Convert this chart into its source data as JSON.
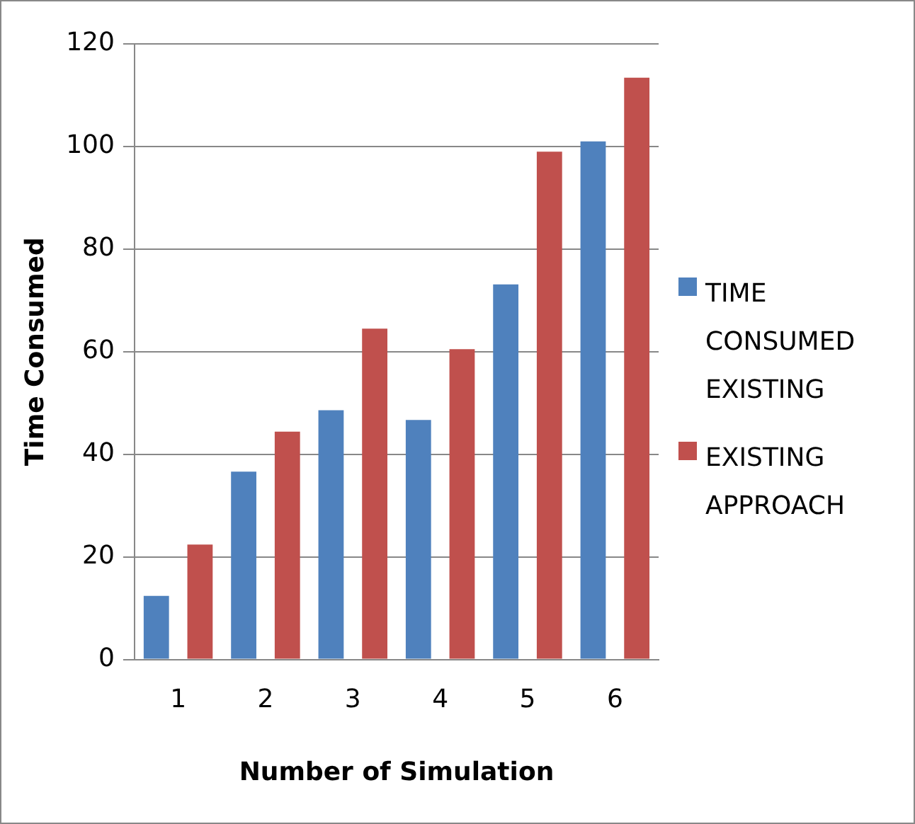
{
  "chart_data": {
    "type": "bar",
    "xlabel": "Number of Simulation",
    "ylabel": "Time Consumed",
    "categories": [
      "1",
      "2",
      "3",
      "4",
      "5",
      "6"
    ],
    "series": [
      {
        "name": "TIME CONSUMED EXISTING",
        "color": "#4f81bd",
        "values": [
          12.4,
          36.6,
          48.6,
          46.7,
          73.1,
          101.0
        ]
      },
      {
        "name": "EXISTING APPROACH",
        "color": "#c0504d",
        "values": [
          22.4,
          44.4,
          64.5,
          60.5,
          99.0,
          113.4
        ]
      }
    ],
    "ylim": [
      0,
      120
    ],
    "yticks": [
      0,
      20,
      40,
      60,
      80,
      100,
      120
    ],
    "grid": "y",
    "legend": "right"
  }
}
